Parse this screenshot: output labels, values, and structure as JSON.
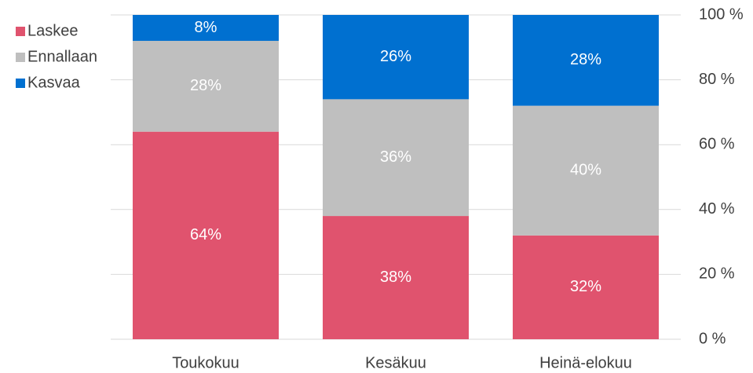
{
  "chart_data": {
    "type": "stacked_bar",
    "categories": [
      "Toukokuu",
      "Kesäkuu",
      "Heinä-elokuu"
    ],
    "series": [
      {
        "name": "Laskee",
        "color": "#e0536e",
        "values": [
          64,
          38,
          32
        ],
        "value_labels": [
          "64%",
          "38%",
          "32%"
        ]
      },
      {
        "name": "Ennallaan",
        "color": "#bfbfbf",
        "values": [
          28,
          36,
          40
        ],
        "value_labels": [
          "28%",
          "36%",
          "40%"
        ]
      },
      {
        "name": "Kasvaa",
        "color": "#0070d0",
        "values": [
          8,
          26,
          28
        ],
        "value_labels": [
          "8%",
          "26%",
          "28%"
        ]
      }
    ],
    "ylim": [
      0,
      100
    ],
    "yticks": [
      {
        "value": 0,
        "label": "0 %"
      },
      {
        "value": 20,
        "label": "20 %"
      },
      {
        "value": 40,
        "label": "40 %"
      },
      {
        "value": 60,
        "label": "60 %"
      },
      {
        "value": 80,
        "label": "80 %"
      },
      {
        "value": 100,
        "label": "100 %"
      }
    ],
    "grid": true,
    "legend": "top-left"
  }
}
